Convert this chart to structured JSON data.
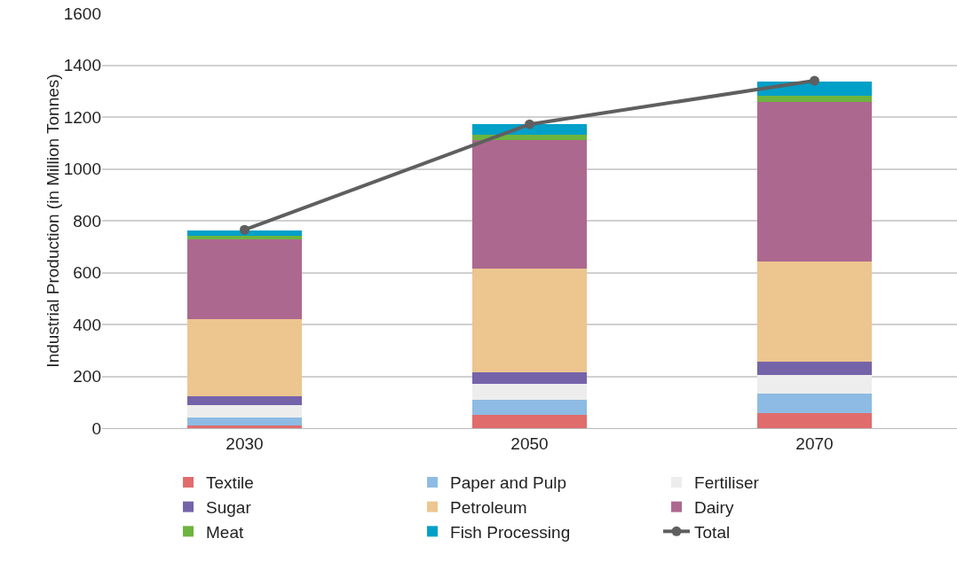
{
  "chart_data": {
    "type": "bar",
    "stacked": true,
    "ylabel": "Industrial Production (in Million Tonnes)",
    "categories": [
      "2030",
      "2050",
      "2070"
    ],
    "ylim": [
      0,
      1600
    ],
    "yticks": [
      0,
      200,
      400,
      600,
      800,
      1000,
      1200,
      1400,
      1600
    ],
    "grid": "y",
    "legend": "bottom",
    "series": [
      {
        "name": "Textile",
        "color": "#e06c6c",
        "values": [
          11,
          50,
          58
        ]
      },
      {
        "name": "Paper and Pulp",
        "color": "#8dbbe3",
        "values": [
          29,
          58,
          75
        ]
      },
      {
        "name": "Fertiliser",
        "color": "#ededed",
        "values": [
          49,
          63,
          72
        ]
      },
      {
        "name": "Sugar",
        "color": "#7563aa",
        "values": [
          35,
          43,
          50
        ]
      },
      {
        "name": "Petroleum",
        "color": "#ecc58f",
        "values": [
          296,
          402,
          387
        ]
      },
      {
        "name": "Dairy",
        "color": "#ad688f",
        "values": [
          309,
          496,
          617
        ]
      },
      {
        "name": "Meat",
        "color": "#6db33f",
        "values": [
          12,
          19,
          23
        ]
      },
      {
        "name": "Fish Processing",
        "color": "#00a0c8",
        "values": [
          23,
          40,
          56
        ]
      },
      {
        "name": "Total",
        "type": "line",
        "color": "#5f5f5f",
        "marker": "circle",
        "values": [
          765,
          1172,
          1340
        ]
      }
    ]
  }
}
